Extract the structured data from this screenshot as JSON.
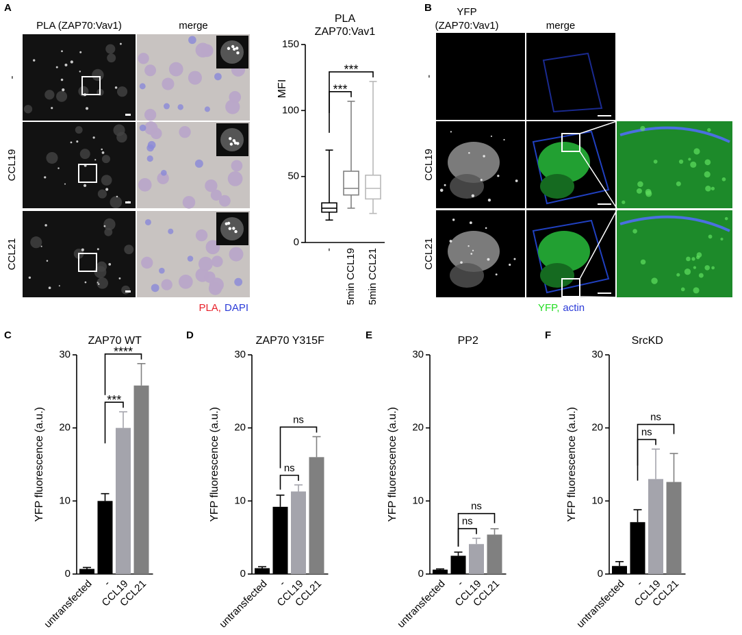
{
  "panel_letters": [
    "A",
    "B",
    "C",
    "D",
    "E",
    "F"
  ],
  "images": {
    "A": {
      "columns": [
        "PLA (ZAP70:Vav1)",
        "merge"
      ],
      "rows": [
        "-",
        "CCL19",
        "CCL21"
      ],
      "legend": [
        {
          "text": "PLA,",
          "color": "#e8202a"
        },
        {
          "text": "DAPI",
          "color": "#2a3ad8"
        }
      ]
    },
    "B": {
      "columns": [
        "YFP",
        "merge"
      ],
      "column_subtitle": "(ZAP70:Vav1)",
      "rows": [
        "-",
        "CCL19",
        "CCL21"
      ],
      "legend": [
        {
          "text": "YFP,",
          "color": "#22dd22"
        },
        {
          "text": "actin",
          "color": "#2a3ad8"
        }
      ]
    }
  },
  "chart_data": [
    {
      "type": "box",
      "title": "PLA",
      "subtitle": "ZAP70:Vav1",
      "ylabel": "MFI",
      "categories": [
        "-",
        "5min CCL19",
        "5min CCL21"
      ],
      "boxes": [
        {
          "min": 17,
          "q1": 23,
          "median": 26,
          "q3": 30,
          "max": 70
        },
        {
          "min": 26,
          "q1": 36,
          "median": 41,
          "q3": 54,
          "max": 107
        },
        {
          "min": 22,
          "q1": 33,
          "median": 41,
          "q3": 51,
          "max": 122
        }
      ],
      "colors": [
        "#000000",
        "#808080",
        "#b8b8b8"
      ],
      "ylim": [
        0,
        150
      ],
      "yticks": [
        0,
        50,
        100,
        150
      ],
      "annotations": [
        {
          "text": "***",
          "from": 0,
          "to": 1
        },
        {
          "text": "***",
          "from": 0,
          "to": 2
        }
      ]
    },
    {
      "type": "bar",
      "title": "ZAP70 WT",
      "ylabel": "YFP fluorescence (a.u.)",
      "categories": [
        "untransfected",
        "-",
        "CCL19",
        "CCL21"
      ],
      "values": [
        0.7,
        10,
        20,
        25.8
      ],
      "errors": [
        0.2,
        1,
        2.2,
        3
      ],
      "colors": [
        "#000000",
        "#000000",
        "#a4a4ac",
        "#808080"
      ],
      "ylim": [
        0,
        30
      ],
      "yticks": [
        0,
        10,
        20,
        30
      ],
      "annotations": [
        {
          "text": "***",
          "from": 1,
          "to": 2
        },
        {
          "text": "****",
          "from": 1,
          "to": 3
        }
      ]
    },
    {
      "type": "bar",
      "title": "ZAP70  Y315F",
      "ylabel": "YFP fluorescence (a.u.)",
      "categories": [
        "untransfected",
        "-",
        "CCL19",
        "CCL21"
      ],
      "values": [
        0.8,
        9.2,
        11.3,
        16
      ],
      "errors": [
        0.2,
        1.6,
        0.9,
        2.8
      ],
      "colors": [
        "#000000",
        "#000000",
        "#a4a4ac",
        "#808080"
      ],
      "ylim": [
        0,
        30
      ],
      "yticks": [
        0,
        10,
        20,
        30
      ],
      "annotations": [
        {
          "text": "ns",
          "from": 1,
          "to": 2
        },
        {
          "text": "ns",
          "from": 1,
          "to": 3
        }
      ]
    },
    {
      "type": "bar",
      "title": "PP2",
      "ylabel": "YFP fluorescence (a.u.)",
      "categories": [
        "untransfected",
        "-",
        "CCL19",
        "CCL21"
      ],
      "values": [
        0.6,
        2.5,
        4.1,
        5.4
      ],
      "errors": [
        0.1,
        0.5,
        0.8,
        0.8
      ],
      "colors": [
        "#000000",
        "#000000",
        "#a4a4ac",
        "#808080"
      ],
      "ylim": [
        0,
        30
      ],
      "yticks": [
        0,
        10,
        20,
        30
      ],
      "annotations": [
        {
          "text": "ns",
          "from": 1,
          "to": 2
        },
        {
          "text": "ns",
          "from": 1,
          "to": 3
        }
      ]
    },
    {
      "type": "bar",
      "title": "SrcKD",
      "ylabel": "YFP fluorescence (a.u.)",
      "categories": [
        "untransfected",
        "-",
        "CCL19",
        "CCL21"
      ],
      "values": [
        1.1,
        7.1,
        13,
        12.6
      ],
      "errors": [
        0.6,
        1.7,
        4.1,
        3.9
      ],
      "colors": [
        "#000000",
        "#000000",
        "#a4a4ac",
        "#808080"
      ],
      "ylim": [
        0,
        30
      ],
      "yticks": [
        0,
        10,
        20,
        30
      ],
      "annotations": [
        {
          "text": "ns",
          "from": 1,
          "to": 2
        },
        {
          "text": "ns",
          "from": 1,
          "to": 3
        }
      ]
    }
  ]
}
